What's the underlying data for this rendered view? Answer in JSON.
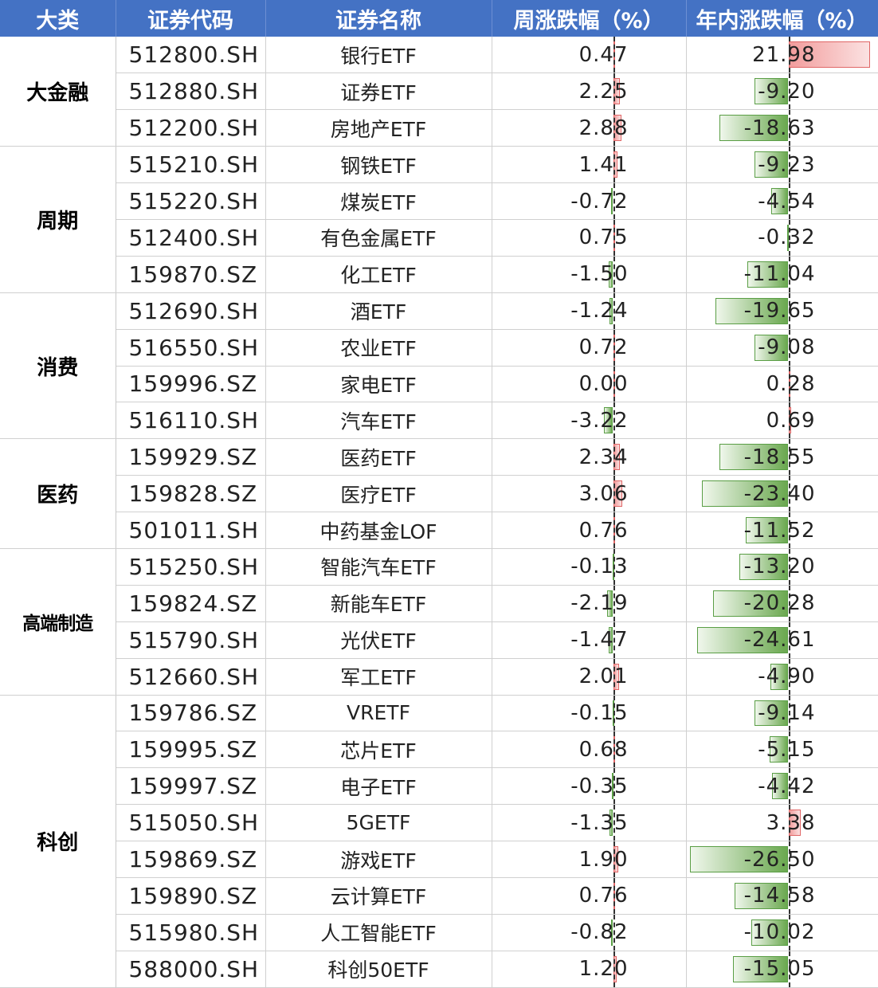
{
  "headers": {
    "category": "大类",
    "code": "证券代码",
    "name": "证券名称",
    "week": "周涨跌幅（%）",
    "year": "年内涨跌幅（%）"
  },
  "colors": {
    "header_bg": "#4472c4",
    "positive_bar": "#f29c9c",
    "negative_bar": "#6aa84f"
  },
  "groups": [
    {
      "category": "大金融",
      "rows": [
        {
          "code": "512800.SH",
          "name": "银行ETF",
          "week": "0.47",
          "year": "21.98"
        },
        {
          "code": "512880.SH",
          "name": "证券ETF",
          "week": "2.25",
          "year": "-9.20"
        },
        {
          "code": "512200.SH",
          "name": "房地产ETF",
          "week": "2.88",
          "year": "-18.63"
        }
      ]
    },
    {
      "category": "周期",
      "rows": [
        {
          "code": "515210.SH",
          "name": "钢铁ETF",
          "week": "1.41",
          "year": "-9.23"
        },
        {
          "code": "515220.SH",
          "name": "煤炭ETF",
          "week": "-0.72",
          "year": "-4.54"
        },
        {
          "code": "512400.SH",
          "name": "有色金属ETF",
          "week": "0.75",
          "year": "-0.32"
        },
        {
          "code": "159870.SZ",
          "name": "化工ETF",
          "week": "-1.50",
          "year": "-11.04"
        }
      ]
    },
    {
      "category": "消费",
      "rows": [
        {
          "code": "512690.SH",
          "name": "酒ETF",
          "week": "-1.24",
          "year": "-19.65"
        },
        {
          "code": "516550.SH",
          "name": "农业ETF",
          "week": "0.72",
          "year": "-9.08"
        },
        {
          "code": "159996.SZ",
          "name": "家电ETF",
          "week": "0.00",
          "year": "0.28"
        },
        {
          "code": "516110.SH",
          "name": "汽车ETF",
          "week": "-3.22",
          "year": "0.69"
        }
      ]
    },
    {
      "category": "医药",
      "rows": [
        {
          "code": "159929.SZ",
          "name": "医药ETF",
          "week": "2.34",
          "year": "-18.55"
        },
        {
          "code": "159828.SZ",
          "name": "医疗ETF",
          "week": "3.06",
          "year": "-23.40"
        },
        {
          "code": "501011.SH",
          "name": "中药基金LOF",
          "week": "0.76",
          "year": "-11.52"
        }
      ]
    },
    {
      "category": "高端制造",
      "rows": [
        {
          "code": "515250.SH",
          "name": "智能汽车ETF",
          "week": "-0.13",
          "year": "-13.20"
        },
        {
          "code": "159824.SZ",
          "name": "新能车ETF",
          "week": "-2.19",
          "year": "-20.28"
        },
        {
          "code": "515790.SH",
          "name": "光伏ETF",
          "week": "-1.47",
          "year": "-24.61"
        },
        {
          "code": "512660.SH",
          "name": "军工ETF",
          "week": "2.01",
          "year": "-4.90"
        }
      ]
    },
    {
      "category": "科创",
      "rows": [
        {
          "code": "159786.SZ",
          "name": "VRETF",
          "week": "-0.15",
          "year": "-9.14"
        },
        {
          "code": "159995.SZ",
          "name": "芯片ETF",
          "week": "0.68",
          "year": "-5.15"
        },
        {
          "code": "159997.SZ",
          "name": "电子ETF",
          "week": "-0.35",
          "year": "-4.42"
        },
        {
          "code": "515050.SH",
          "name": "5GETF",
          "week": "-1.35",
          "year": "3.38"
        },
        {
          "code": "159869.SZ",
          "name": "游戏ETF",
          "week": "1.90",
          "year": "-26.50"
        },
        {
          "code": "159890.SZ",
          "name": "云计算ETF",
          "week": "0.76",
          "year": "-14.58"
        },
        {
          "code": "515980.SH",
          "name": "人工智能ETF",
          "week": "-0.82",
          "year": "-10.02"
        },
        {
          "code": "588000.SH",
          "name": "科创50ETF",
          "week": "1.20",
          "year": "-15.05"
        }
      ]
    }
  ]
}
